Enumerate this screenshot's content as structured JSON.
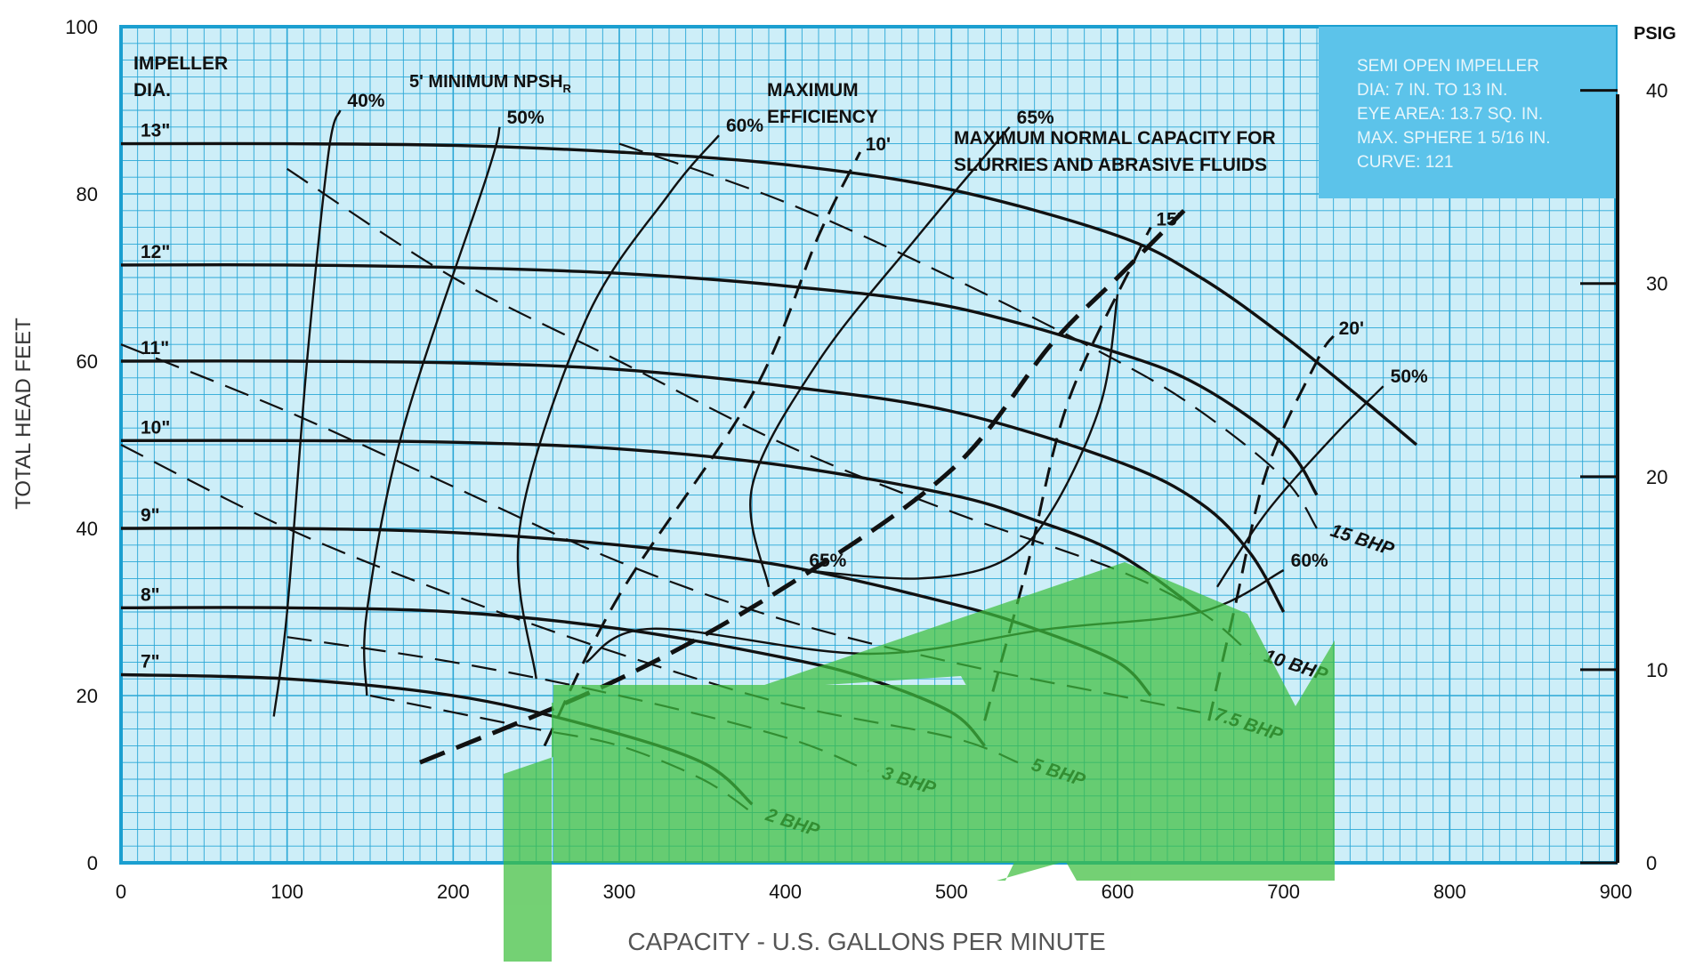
{
  "chart_data": {
    "type": "line",
    "xlabel": "CAPACITY - U.S. GALLONS PER MINUTE",
    "ylabel": "TOTAL HEAD FEET",
    "y2label": "PSIG",
    "xlim": [
      0,
      900
    ],
    "ylim": [
      0,
      100
    ],
    "y2lim": [
      0,
      43.3
    ],
    "x_ticks": [
      "0",
      "100",
      "200",
      "300",
      "400",
      "500",
      "600",
      "700",
      "800",
      "900"
    ],
    "y_ticks": [
      "0",
      "20",
      "40",
      "60",
      "80",
      "100"
    ],
    "y2_ticks": [
      "0",
      "10",
      "20",
      "30",
      "40"
    ],
    "grid": true,
    "info_box": [
      "SEMI OPEN IMPELLER",
      "DIA: 7 IN. TO 13 IN.",
      "EYE AREA: 13.7 SQ. IN.",
      "MAX. SPHERE 1 5/16 IN.",
      "CURVE: 121"
    ],
    "heading_labels": {
      "impeller": [
        "IMPELLER",
        "DIA."
      ],
      "npsh": "5' MINIMUM NPSH",
      "npsh_sub": "R",
      "max_eff": [
        "MAXIMUM",
        "EFFICIENCY"
      ],
      "slurry": [
        "MAXIMUM NORMAL CAPACITY FOR",
        "SLURRIES AND ABRASIVE FLUIDS"
      ]
    },
    "impeller_curves": [
      {
        "label": "13\"",
        "points": [
          [
            0,
            86
          ],
          [
            100,
            86
          ],
          [
            200,
            85.8
          ],
          [
            300,
            85
          ],
          [
            400,
            83.5
          ],
          [
            500,
            80.5
          ],
          [
            600,
            75
          ],
          [
            650,
            70
          ],
          [
            700,
            63
          ],
          [
            750,
            55
          ],
          [
            780,
            50
          ]
        ]
      },
      {
        "label": "12\"",
        "points": [
          [
            0,
            71.5
          ],
          [
            100,
            71.5
          ],
          [
            200,
            71.2
          ],
          [
            300,
            70.5
          ],
          [
            400,
            69
          ],
          [
            500,
            66.5
          ],
          [
            600,
            61
          ],
          [
            650,
            57
          ],
          [
            700,
            50
          ],
          [
            720,
            44
          ]
        ]
      },
      {
        "label": "11\"",
        "points": [
          [
            0,
            60
          ],
          [
            100,
            60
          ],
          [
            200,
            59.8
          ],
          [
            300,
            59
          ],
          [
            400,
            57
          ],
          [
            500,
            54
          ],
          [
            600,
            48
          ],
          [
            650,
            43
          ],
          [
            680,
            37
          ],
          [
            700,
            30
          ]
        ]
      },
      {
        "label": "10\"",
        "points": [
          [
            0,
            50.5
          ],
          [
            100,
            50.5
          ],
          [
            200,
            50.3
          ],
          [
            300,
            49.5
          ],
          [
            400,
            47.5
          ],
          [
            500,
            44
          ],
          [
            550,
            41
          ],
          [
            600,
            37
          ],
          [
            650,
            30
          ]
        ]
      },
      {
        "label": "9\"",
        "points": [
          [
            0,
            40
          ],
          [
            100,
            40
          ],
          [
            200,
            39.5
          ],
          [
            300,
            38
          ],
          [
            400,
            35.5
          ],
          [
            500,
            31
          ],
          [
            550,
            28
          ],
          [
            600,
            24
          ],
          [
            620,
            20
          ]
        ]
      },
      {
        "label": "8\"",
        "points": [
          [
            0,
            30.5
          ],
          [
            100,
            30.5
          ],
          [
            200,
            30
          ],
          [
            300,
            28
          ],
          [
            400,
            24.5
          ],
          [
            450,
            22
          ],
          [
            500,
            18
          ],
          [
            520,
            14
          ]
        ]
      },
      {
        "label": "7\"",
        "points": [
          [
            0,
            22.5
          ],
          [
            100,
            22
          ],
          [
            200,
            20
          ],
          [
            280,
            16.5
          ],
          [
            350,
            12
          ],
          [
            380,
            7
          ]
        ]
      }
    ],
    "efficiency_curves": [
      {
        "label": "40%",
        "points": [
          [
            92,
            17.5
          ],
          [
            100,
            30
          ],
          [
            112,
            60
          ],
          [
            125,
            85
          ],
          [
            132,
            90
          ]
        ]
      },
      {
        "label": "50%",
        "points": [
          [
            148,
            20
          ],
          [
            148,
            30
          ],
          [
            170,
            52
          ],
          [
            220,
            82
          ],
          [
            228,
            88
          ]
        ],
        "label_right": "50%",
        "points_right": [
          [
            660,
            33
          ],
          [
            690,
            42
          ],
          [
            730,
            51
          ],
          [
            760,
            57
          ]
        ]
      },
      {
        "label": "60%",
        "points": [
          [
            280,
            24
          ],
          [
            320,
            28
          ],
          [
            450,
            25
          ],
          [
            560,
            28
          ],
          [
            650,
            30
          ],
          [
            700,
            35
          ]
        ],
        "label_right": "60%",
        "points_right": [
          [
            250,
            22
          ],
          [
            240,
            40
          ],
          [
            280,
            65
          ],
          [
            330,
            80
          ],
          [
            360,
            87
          ]
        ]
      },
      {
        "label": "65%",
        "points": [
          [
            390,
            33
          ],
          [
            380,
            45
          ],
          [
            420,
            60
          ],
          [
            480,
            75
          ],
          [
            535,
            88
          ]
        ],
        "label_right": "65%",
        "points_right": [
          [
            600,
            68
          ],
          [
            590,
            55
          ],
          [
            560,
            42
          ],
          [
            530,
            36
          ],
          [
            480,
            34
          ],
          [
            410,
            35
          ]
        ]
      }
    ],
    "npsh_curves": [
      {
        "label": "10'",
        "points": [
          [
            255,
            14
          ],
          [
            300,
            32
          ],
          [
            380,
            56
          ],
          [
            420,
            75
          ],
          [
            445,
            85
          ]
        ]
      },
      {
        "label": "15'",
        "points": [
          [
            520,
            17
          ],
          [
            545,
            35
          ],
          [
            570,
            55
          ],
          [
            610,
            72
          ],
          [
            620,
            76
          ]
        ]
      },
      {
        "label": "20'",
        "points": [
          [
            655,
            17
          ],
          [
            670,
            30
          ],
          [
            690,
            47
          ],
          [
            720,
            60
          ],
          [
            730,
            63
          ]
        ]
      }
    ],
    "bhp_curves": [
      {
        "label": "2 BHP",
        "points": [
          [
            150,
            20
          ],
          [
            200,
            18
          ],
          [
            250,
            16
          ],
          [
            300,
            14
          ],
          [
            350,
            10
          ],
          [
            380,
            6
          ]
        ]
      },
      {
        "label": "3 BHP",
        "points": [
          [
            100,
            27
          ],
          [
            200,
            24
          ],
          [
            300,
            20
          ],
          [
            400,
            15
          ],
          [
            450,
            11
          ]
        ]
      },
      {
        "label": "5 BHP",
        "points": [
          [
            0,
            50
          ],
          [
            100,
            40
          ],
          [
            200,
            32
          ],
          [
            300,
            25
          ],
          [
            400,
            19
          ],
          [
            500,
            15
          ],
          [
            540,
            12
          ]
        ]
      },
      {
        "label": "7.5 BHP",
        "points": [
          [
            0,
            62
          ],
          [
            100,
            54
          ],
          [
            200,
            45
          ],
          [
            300,
            36
          ],
          [
            400,
            29
          ],
          [
            500,
            24
          ],
          [
            600,
            20
          ],
          [
            650,
            18
          ]
        ]
      },
      {
        "label": "10 BHP",
        "points": [
          [
            100,
            83
          ],
          [
            200,
            70
          ],
          [
            300,
            60
          ],
          [
            400,
            50
          ],
          [
            500,
            42
          ],
          [
            600,
            35
          ],
          [
            650,
            30
          ],
          [
            680,
            25
          ]
        ]
      },
      {
        "label": "15 BHP",
        "points": [
          [
            300,
            86
          ],
          [
            400,
            79
          ],
          [
            500,
            70
          ],
          [
            600,
            60
          ],
          [
            650,
            54
          ],
          [
            700,
            46
          ],
          [
            720,
            40
          ]
        ]
      }
    ],
    "slurry_limit": {
      "points": [
        [
          180,
          12
        ],
        [
          300,
          22
        ],
        [
          400,
          33
        ],
        [
          500,
          47
        ],
        [
          560,
          62
        ],
        [
          600,
          70
        ],
        [
          640,
          78
        ]
      ]
    }
  },
  "watermark_color": "#3fbf3f"
}
